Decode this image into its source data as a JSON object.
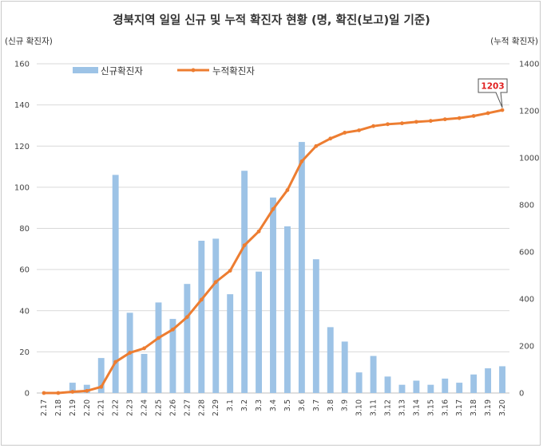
{
  "chart_data": {
    "type": "bar+line",
    "title": "경북지역 일일 신규 및 누적 확진자 현황 (명, 확진(보고)일 기준)",
    "y_left_label": "(신규 확진자)",
    "y_right_label": "(누적 확진자)",
    "ylim_left": [
      0,
      160
    ],
    "yticks_left": [
      0,
      20,
      40,
      60,
      80,
      100,
      120,
      140,
      160
    ],
    "ylim_right": [
      0,
      1400
    ],
    "yticks_right": [
      0,
      200,
      400,
      600,
      800,
      1000,
      1200,
      1400
    ],
    "categories": [
      "2.17",
      "2.18",
      "2.19",
      "2.20",
      "2.21",
      "2.22",
      "2.23",
      "2.24",
      "2.25",
      "2.26",
      "2.27",
      "2.28",
      "2.29",
      "3.1",
      "3.2",
      "3.3",
      "3.4",
      "3.5",
      "3.6",
      "3.7",
      "3.8",
      "3.9",
      "3.10",
      "3.11",
      "3.12",
      "3.13",
      "3.14",
      "3.15",
      "3.16",
      "3.17",
      "3.18",
      "3.19",
      "3.20"
    ],
    "series": [
      {
        "name": "신규확진자",
        "type": "bar",
        "axis": "left",
        "color": "#9dc3e6",
        "values": [
          0,
          0,
          5,
          4,
          17,
          106,
          39,
          19,
          44,
          36,
          53,
          74,
          75,
          48,
          108,
          59,
          95,
          81,
          122,
          65,
          32,
          25,
          10,
          18,
          8,
          4,
          6,
          4,
          7,
          5,
          9,
          12,
          13
        ]
      },
      {
        "name": "누적확진자",
        "type": "line",
        "axis": "right",
        "color": "#ed7d31",
        "values": [
          0,
          0,
          5,
          9,
          26,
          132,
          171,
          190,
          234,
          270,
          323,
          397,
          472,
          520,
          628,
          687,
          782,
          863,
          985,
          1050,
          1082,
          1107,
          1117,
          1135,
          1143,
          1147,
          1153,
          1157,
          1164,
          1169,
          1178,
          1190,
          1203
        ]
      }
    ],
    "annotation": {
      "label": "1203",
      "color": "#e02020"
    },
    "legend": "top-left",
    "grid": true
  }
}
